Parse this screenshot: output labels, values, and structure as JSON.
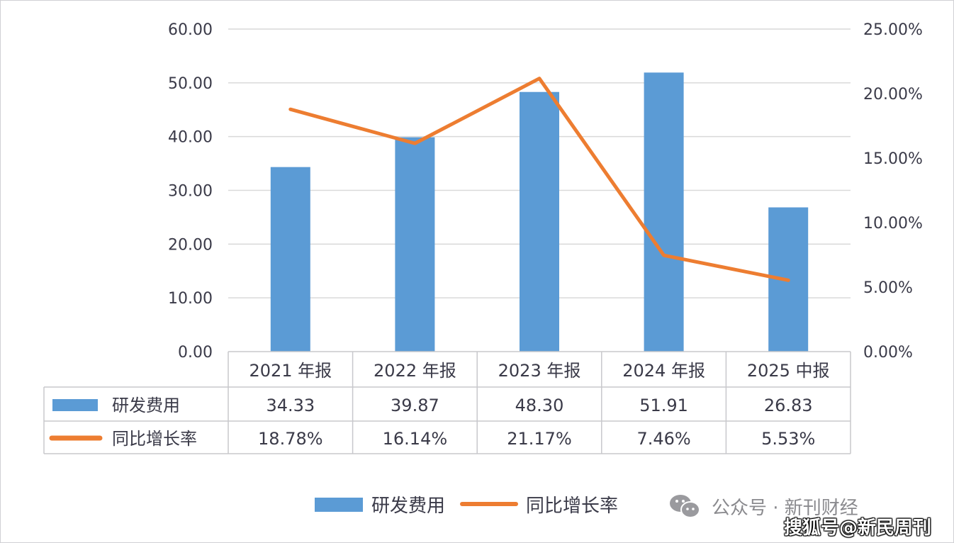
{
  "chart_data": {
    "type": "bar",
    "categories": [
      "2021 年报",
      "2022 年报",
      "2023 年报",
      "2024 年报",
      "2025 中报"
    ],
    "series": [
      {
        "name": "研发费用",
        "type": "bar",
        "axis": "left",
        "values": [
          34.33,
          39.87,
          48.3,
          51.91,
          26.83
        ],
        "labels": [
          "34.33",
          "39.87",
          "48.30",
          "51.91",
          "26.83"
        ],
        "color": "#5b9bd5"
      },
      {
        "name": "同比增长率",
        "type": "line",
        "axis": "right",
        "values": [
          18.78,
          16.14,
          21.17,
          7.46,
          5.53
        ],
        "labels": [
          "18.78%",
          "16.14%",
          "21.17%",
          "7.46%",
          "5.53%"
        ],
        "color": "#ed7d31"
      }
    ],
    "ylim_left": [
      0,
      60
    ],
    "yticks_left": [
      "0.00",
      "10.00",
      "20.00",
      "30.00",
      "40.00",
      "50.00",
      "60.00"
    ],
    "ylim_right": [
      0,
      25
    ],
    "yticks_right": [
      "0.00%",
      "5.00%",
      "10.00%",
      "15.00%",
      "20.00%",
      "25.00%"
    ],
    "grid": true,
    "data_table": true,
    "legend_placement": "bottom-right"
  },
  "watermark": {
    "account": "公众号 · 新刊财经",
    "source": "搜狐号@新民周刊",
    "icon": "wechat-icon"
  }
}
